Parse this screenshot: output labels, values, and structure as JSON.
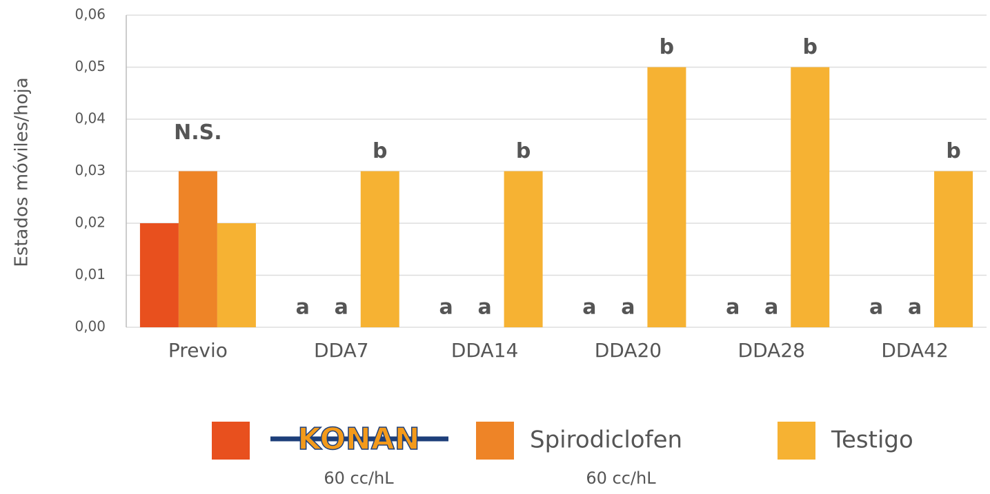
{
  "chart_data": {
    "type": "bar",
    "y_label": "Estados móviles/hoja",
    "categories": [
      "Previo",
      "DDA7",
      "DDA14",
      "DDA20",
      "DDA28",
      "DDA42"
    ],
    "series": [
      {
        "name": "KONAN",
        "dose": "60 cc/hL",
        "color": "#e8501e",
        "values": [
          0.02,
          0,
          0,
          0,
          0,
          0
        ],
        "letters": [
          null,
          "a",
          "a",
          "a",
          "a",
          "a"
        ]
      },
      {
        "name": "Spirodiclofen",
        "dose": "60 cc/hL",
        "color": "#ee8427",
        "values": [
          0.03,
          0,
          0,
          0,
          0,
          0
        ],
        "letters": [
          null,
          "a",
          "a",
          "a",
          "a",
          "a"
        ]
      },
      {
        "name": "Testigo",
        "color": "#f6b233",
        "values": [
          0.02,
          0.03,
          0.03,
          0.05,
          0.05,
          0.03
        ],
        "letters": [
          null,
          "b",
          "b",
          "b",
          "b",
          "b"
        ]
      }
    ],
    "annotations": [
      {
        "text": "N.S.",
        "category": 0
      }
    ],
    "ylim": [
      0,
      0.06
    ],
    "yticks": [
      {
        "value": 0,
        "label": "0,00"
      },
      {
        "value": 0.01,
        "label": "0,01"
      },
      {
        "value": 0.02,
        "label": "0,02"
      },
      {
        "value": 0.03,
        "label": "0,03"
      },
      {
        "value": 0.04,
        "label": "0,04"
      },
      {
        "value": 0.05,
        "label": "0,05"
      },
      {
        "value": 0.06,
        "label": "0,06"
      }
    ],
    "grid": true,
    "legend": "bottom"
  }
}
